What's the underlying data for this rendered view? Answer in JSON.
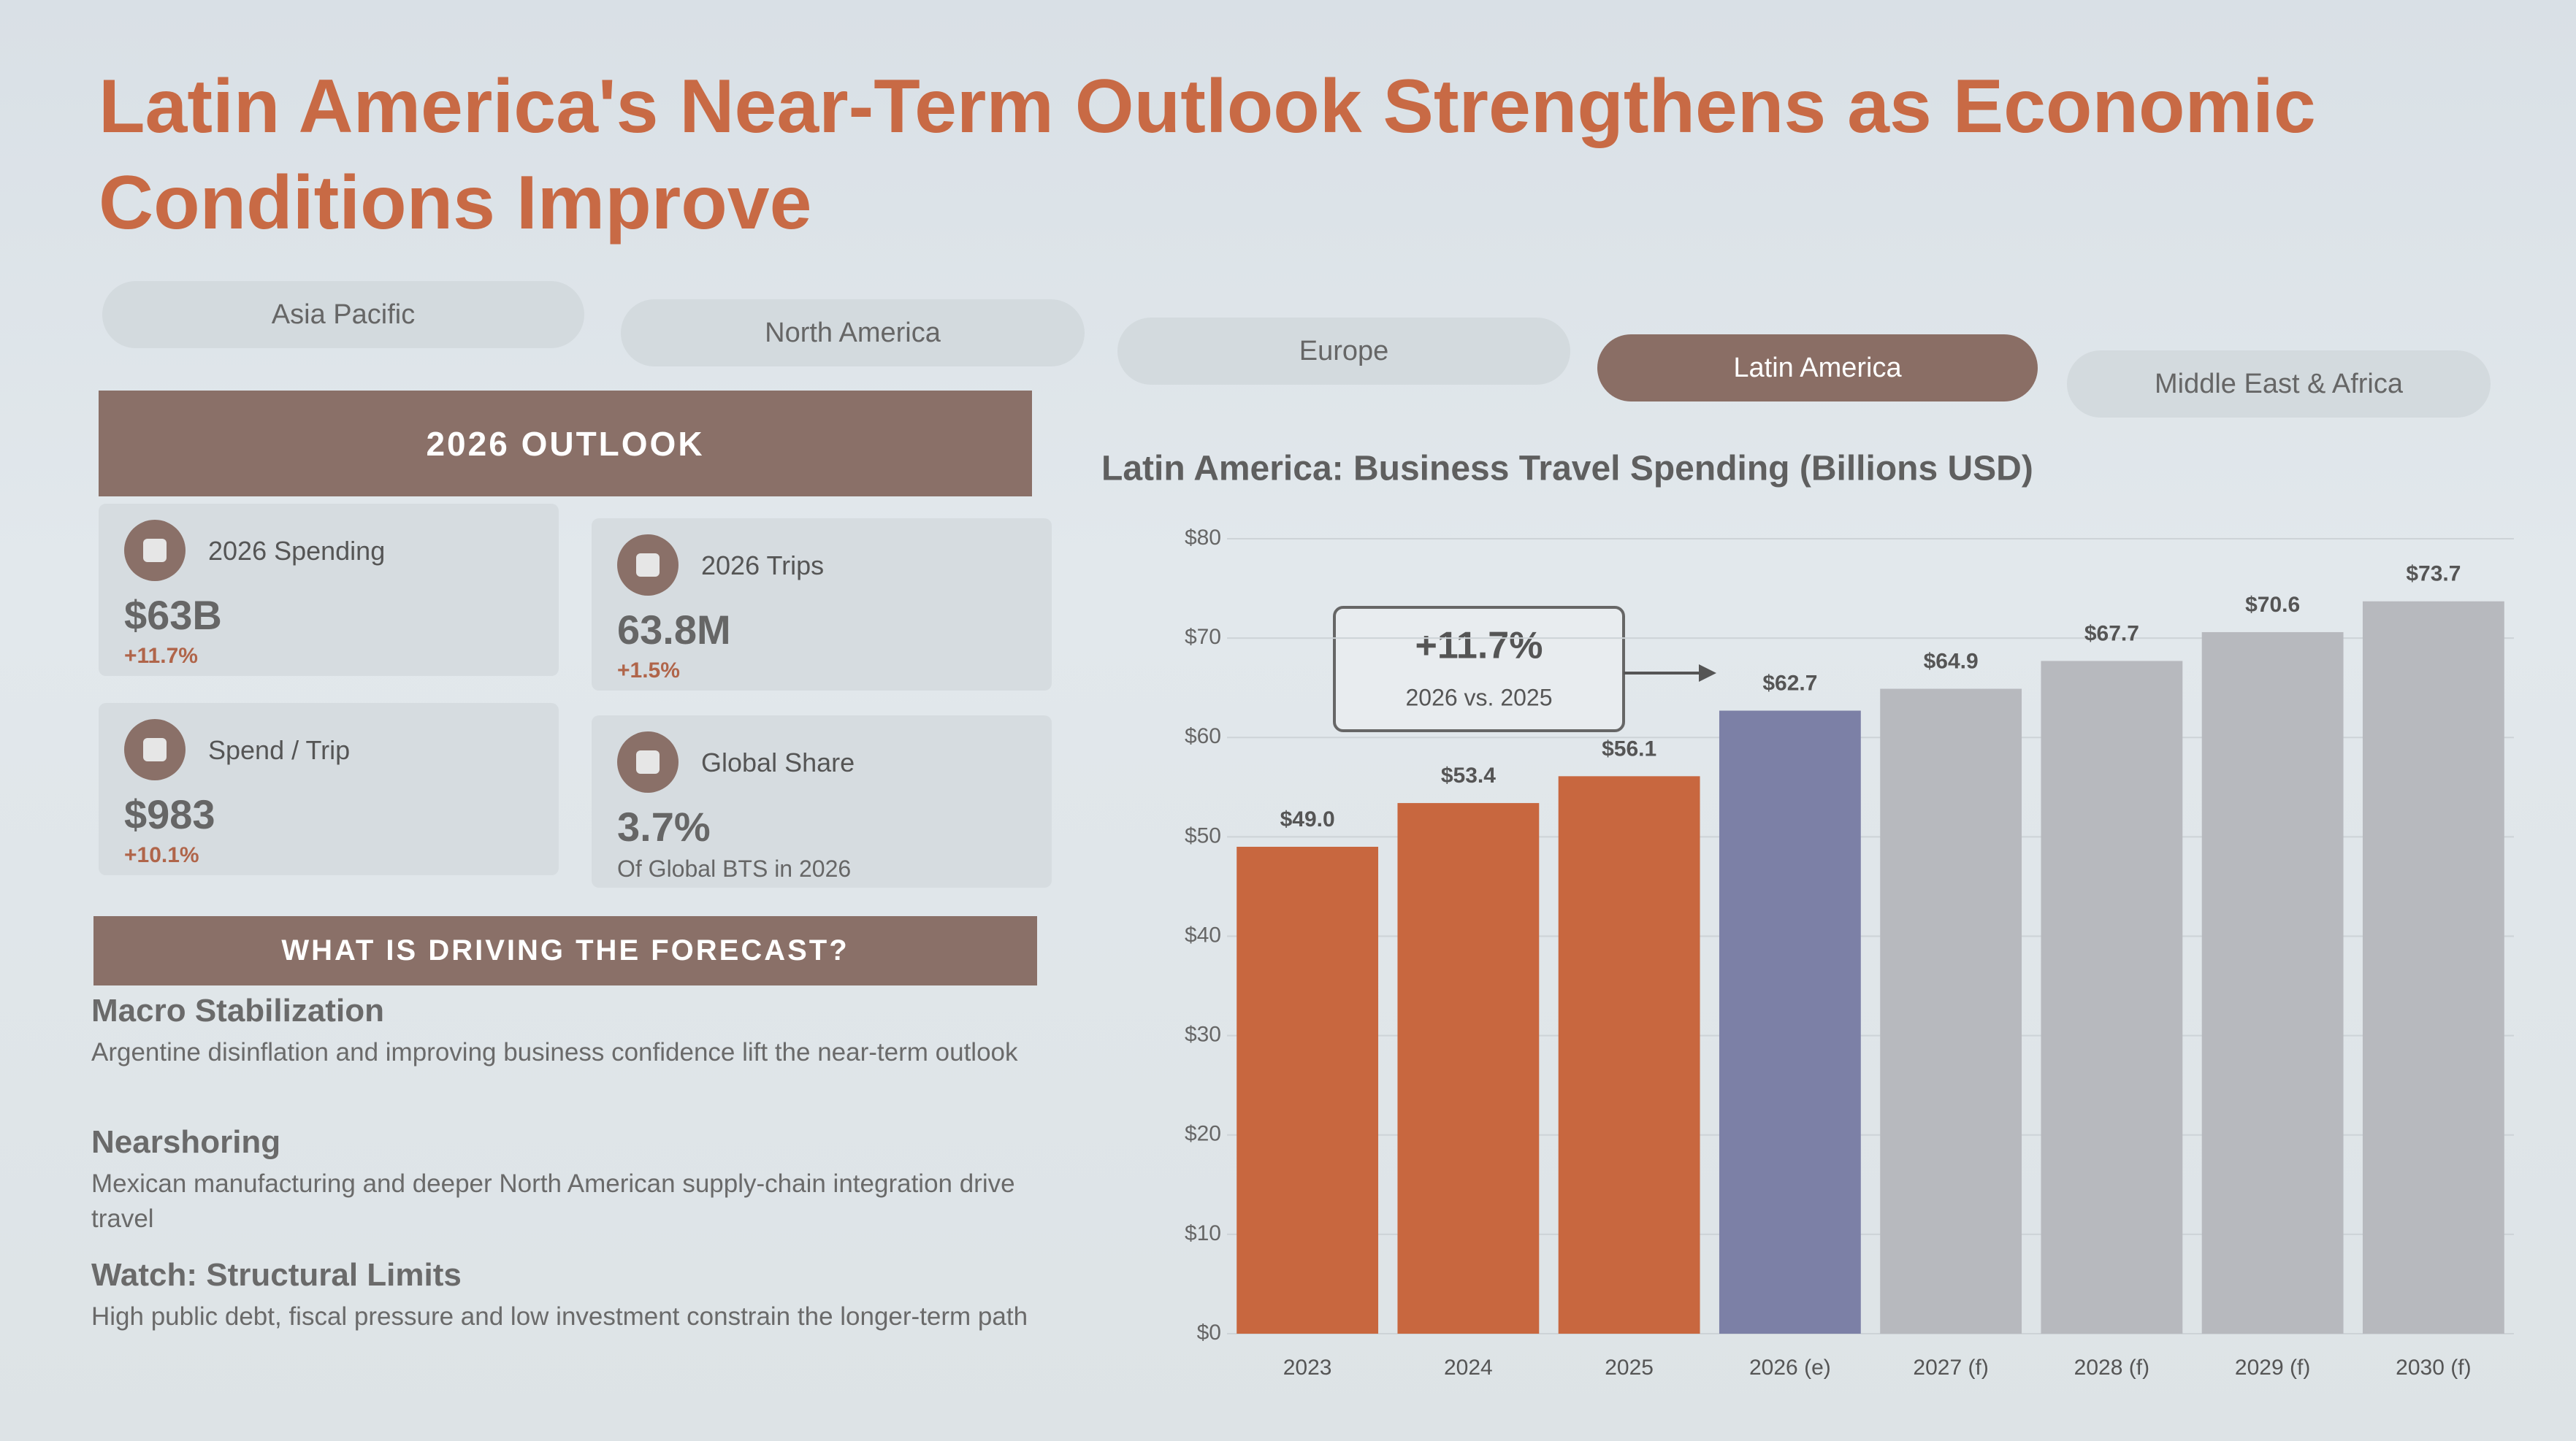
{
  "title": "Latin America's Near-Term Outlook Strengthens as Economic Conditions Improve",
  "tabs": [
    "Asia Pacific",
    "North America",
    "Europe",
    "Latin America",
    "Middle East & Africa"
  ],
  "outlook": {
    "header": "2026 OUTLOOK",
    "cards": [
      {
        "label": "2026 Spending",
        "value": "$63B",
        "change": "+11.7%"
      },
      {
        "label": "2026 Trips",
        "value": "63.8M",
        "change": "+1.5%"
      },
      {
        "label": "Spend / Trip",
        "value": "$983",
        "change": "+10.1%"
      },
      {
        "label": "Global Share",
        "value": "3.7%",
        "note": "Of Global BTS in 2026"
      }
    ]
  },
  "drivers": {
    "header": "WHAT IS DRIVING THE FORECAST?",
    "items": [
      {
        "heading": "Macro Stabilization",
        "text": "Argentine disinflation and improving business confidence lift the near-term outlook"
      },
      {
        "heading": "Nearshoring",
        "text": "Mexican manufacturing and deeper North American supply-chain integration drive travel"
      },
      {
        "heading": "Watch: Structural Limits",
        "text": "High public debt, fiscal pressure and low investment constrain the longer-term path"
      }
    ]
  },
  "chart_data": {
    "type": "bar",
    "title": "Latin America: Business Travel Spending (Billions USD)",
    "categories": [
      "2023",
      "2024",
      "2025",
      "2026 (e)",
      "2027 (f)",
      "2028 (f)",
      "2029 (f)",
      "2030 (f)"
    ],
    "values": [
      49.0,
      53.4,
      56.1,
      62.7,
      64.9,
      67.7,
      70.6,
      73.7
    ],
    "value_labels": [
      "$49.0",
      "$53.4",
      "$56.1",
      "$62.7",
      "$64.9",
      "$67.7",
      "$70.6",
      "$73.7"
    ],
    "colors": [
      "#c8673f",
      "#c8673f",
      "#c8673f",
      "#7c80a6",
      "#b7b9be",
      "#b7b9be",
      "#b7b9be",
      "#b7b9be"
    ],
    "ylim": [
      0,
      80
    ],
    "yticks": [
      {
        "value": 0,
        "label": "$0"
      },
      {
        "value": 10,
        "label": "$10"
      },
      {
        "value": 20,
        "label": "$20"
      },
      {
        "value": 30,
        "label": "$30"
      },
      {
        "value": 40,
        "label": "$40"
      },
      {
        "value": 50,
        "label": "$50"
      },
      {
        "value": 60,
        "label": "$60"
      },
      {
        "value": 70,
        "label": "$70"
      },
      {
        "value": 80,
        "label": "$80"
      }
    ],
    "grid": true,
    "annotation": {
      "text": "+11.7%",
      "subtitle": "2026 vs. 2025"
    }
  }
}
